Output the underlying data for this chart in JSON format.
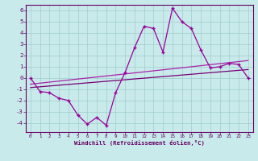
{
  "x": [
    0,
    1,
    2,
    3,
    4,
    5,
    6,
    7,
    8,
    9,
    10,
    11,
    12,
    13,
    14,
    15,
    16,
    17,
    18,
    19,
    20,
    21,
    22,
    23
  ],
  "y_main": [
    0,
    -1.2,
    -1.3,
    -1.8,
    -2.0,
    -3.3,
    -4.1,
    -3.5,
    -4.2,
    -1.3,
    0.5,
    2.7,
    4.6,
    4.4,
    2.3,
    6.2,
    5.0,
    4.4,
    2.5,
    0.9,
    1.0,
    1.3,
    1.2,
    0.0
  ],
  "trend1_start": -0.55,
  "trend1_end": 1.55,
  "trend2_start": -0.85,
  "trend2_end": 0.75,
  "line_color": "#990099",
  "bg_color": "#c8eaea",
  "grid_color": "#a0cccc",
  "axis_color": "#660066",
  "xlabel": "Windchill (Refroidissement éolien,°C)",
  "ylim": [
    -4.8,
    6.5
  ],
  "xlim": [
    -0.5,
    23.5
  ],
  "yticks": [
    -4,
    -3,
    -2,
    -1,
    0,
    1,
    2,
    3,
    4,
    5,
    6
  ],
  "xticks": [
    0,
    1,
    2,
    3,
    4,
    5,
    6,
    7,
    8,
    9,
    10,
    11,
    12,
    13,
    14,
    15,
    16,
    17,
    18,
    19,
    20,
    21,
    22,
    23
  ]
}
